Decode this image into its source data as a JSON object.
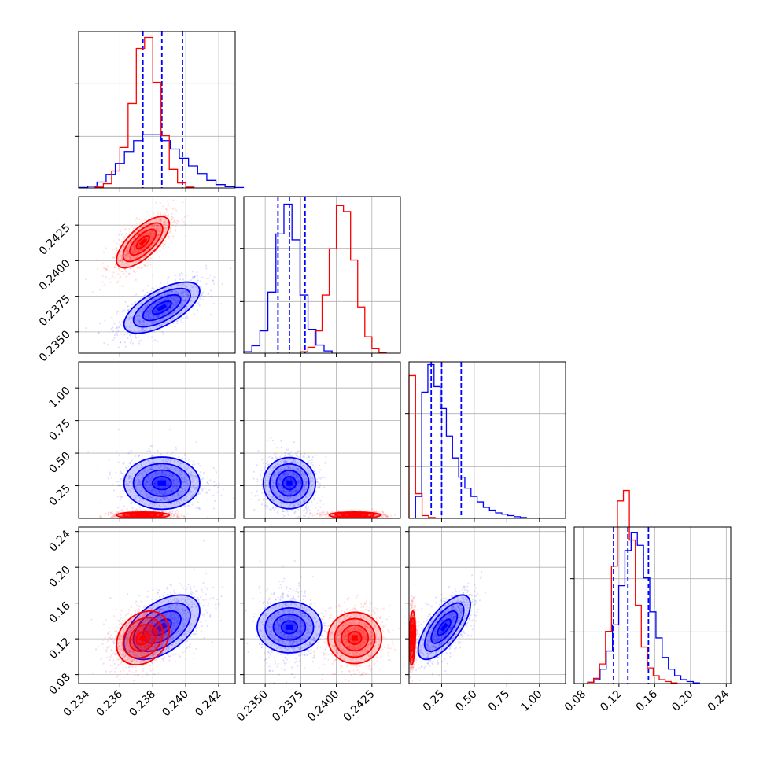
{
  "chart_data": {
    "type": "corner",
    "series": [
      {
        "name": "",
        "color": "#0000ff",
        "role": "marginals with dashed quantile lines",
        "params": [
          {
            "mean": 0.23855,
            "sd": 0.00115,
            "hist": [
              0.5,
              2,
              7,
              16,
              29,
              43,
              56,
              63,
              63,
              56,
              46,
              35,
              26,
              17,
              9,
              4,
              1.5,
              0.5
            ],
            "hist_range": [
              0.2335,
              0.2435
            ],
            "quantiles": [
              0.2374,
              0.23855,
              0.2398
            ]
          },
          {
            "mean": 0.2367,
            "sd": 0.0009,
            "hist": [
              2,
              10,
              30,
              82,
              160,
              200,
              152,
              78,
              32,
              11,
              3
            ],
            "hist_range": [
              0.2335,
              0.2397
            ],
            "quantiles": [
              0.2359,
              0.2367,
              0.2378
            ]
          },
          {
            "mean": 0.27,
            "sd": 0.1,
            "hist": [
              8,
              46,
              56,
              48,
              40,
              30,
              22,
              15,
              11,
              8,
              6,
              4,
              3,
              2,
              1.5,
              1,
              0.6,
              0.3
            ],
            "hist_range": [
              0.05,
              0.9
            ],
            "quantiles": [
              0.17,
              0.25,
              0.4
            ]
          },
          {
            "mean": 0.133,
            "sd": 0.018,
            "hist": [
              1,
              3,
              11,
              25,
              45,
              75,
              102,
              116,
              106,
              81,
              55,
              35,
              20,
              11,
              6,
              3,
              1.5,
              0.5
            ],
            "hist_range": [
              0.085,
              0.21
            ],
            "quantiles": [
              0.114,
              0.13,
              0.153
            ]
          }
        ]
      },
      {
        "name": "",
        "color": "#ff0000",
        "role": "marginals without quantile lines",
        "params": [
          {
            "mean": 0.2374,
            "sd": 0.0008,
            "hist": [
              1,
              5,
              20,
              48,
              100,
              165,
              178,
              125,
              62,
              22,
              6,
              1
            ],
            "hist_range": [
              0.2345,
              0.2405
            ],
            "quantiles": []
          },
          {
            "mean": 0.2413,
            "sd": 0.0009,
            "hist": [
              2,
              8,
              30,
              78,
              140,
              198,
              190,
              125,
              62,
              22,
              6,
              1
            ],
            "hist_range": [
              0.2375,
              0.2435
            ],
            "quantiles": []
          },
          {
            "mean": 0.025,
            "sd": 0.012,
            "hist": [
              52,
              9,
              1,
              0.3
            ],
            "hist_range": [
              0.0,
              0.2
            ],
            "quantiles": []
          },
          {
            "mean": 0.121,
            "sd": 0.015,
            "hist": [
              1,
              4,
              15,
              40,
              90,
              140,
              148,
              110,
              60,
              28,
              12,
              6,
              3,
              1.5,
              0.5
            ],
            "hist_range": [
              0.085,
              0.185
            ],
            "quantiles": []
          }
        ]
      }
    ],
    "correlations": {
      "blue": {
        "1,0": 0.65,
        "2,0": 0.0,
        "2,1": 0.0,
        "3,0": 0.5,
        "3,1": 0.0,
        "3,2": 0.7
      },
      "red": {
        "1,0": 0.7,
        "2,0": 0.0,
        "2,1": 0.0,
        "3,0": 0.25,
        "3,1": 0.0,
        "3,2": 0.2
      }
    },
    "axes": [
      {
        "range": [
          0.2335,
          0.243
        ],
        "ticks": [
          0.234,
          0.236,
          0.238,
          0.24,
          0.242
        ],
        "tick_labels": [
          "0.234",
          "0.236",
          "0.238",
          "0.240",
          "0.242"
        ]
      },
      {
        "range": [
          0.2335,
          0.2445
        ],
        "ticks": [
          0.235,
          0.2375,
          0.24,
          0.2425
        ],
        "tick_labels": [
          "0.2350",
          "0.2375",
          "0.2400",
          "0.2425"
        ]
      },
      {
        "range": [
          0.0,
          1.2
        ],
        "ticks": [
          0.25,
          0.5,
          0.75,
          1.0
        ],
        "tick_labels": [
          "0.25",
          "0.50",
          "0.75",
          "1.00"
        ]
      },
      {
        "range": [
          0.07,
          0.245
        ],
        "ticks": [
          0.08,
          0.12,
          0.16,
          0.2,
          0.24
        ],
        "tick_labels": [
          "0.08",
          "0.12",
          "0.16",
          "0.20",
          "0.24"
        ]
      }
    ],
    "diag_hist_max": [
      185,
      210,
      57,
      120
    ],
    "grid": true,
    "legend": "none",
    "xlabel": "",
    "ylabel": ""
  }
}
